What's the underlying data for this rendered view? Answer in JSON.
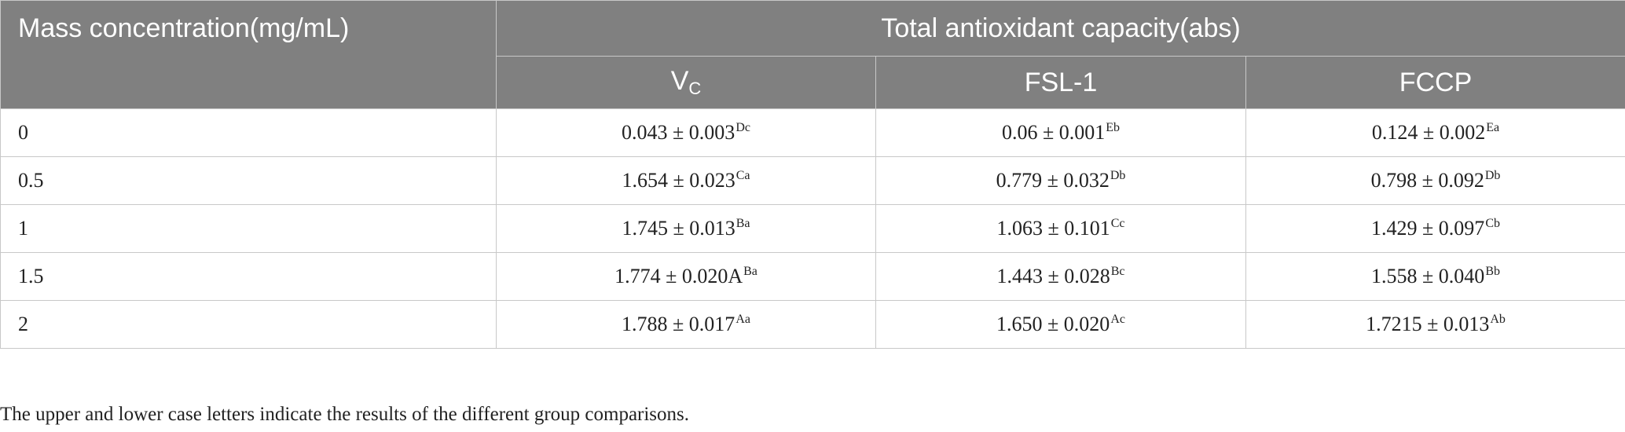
{
  "table": {
    "stub_header": "Mass concentration(mg/mL)",
    "group_header": "Total antioxidant capacity(abs)",
    "columns": [
      {
        "main": "V",
        "sub": "C"
      },
      {
        "main": "FSL-1",
        "sub": ""
      },
      {
        "main": "FCCP",
        "sub": ""
      }
    ],
    "rows": [
      {
        "label": "0",
        "cells": [
          {
            "value": "0.043 ± 0.003",
            "sup": "Dc"
          },
          {
            "value": "0.06 ± 0.001",
            "sup": "Eb"
          },
          {
            "value": "0.124 ± 0.002",
            "sup": "Ea"
          }
        ]
      },
      {
        "label": "0.5",
        "cells": [
          {
            "value": "1.654 ± 0.023",
            "sup": "Ca"
          },
          {
            "value": "0.779 ± 0.032",
            "sup": "Db"
          },
          {
            "value": "0.798 ± 0.092",
            "sup": "Db"
          }
        ]
      },
      {
        "label": "1",
        "cells": [
          {
            "value": "1.745 ± 0.013",
            "sup": "Ba"
          },
          {
            "value": "1.063 ± 0.101",
            "sup": "Cc"
          },
          {
            "value": "1.429 ± 0.097",
            "sup": "Cb"
          }
        ]
      },
      {
        "label": "1.5",
        "cells": [
          {
            "value": "1.774 ± 0.020A",
            "sup": "Ba"
          },
          {
            "value": "1.443 ± 0.028",
            "sup": "Bc"
          },
          {
            "value": "1.558 ± 0.040",
            "sup": "Bb"
          }
        ]
      },
      {
        "label": "2",
        "cells": [
          {
            "value": "1.788 ± 0.017",
            "sup": "Aa"
          },
          {
            "value": "1.650 ± 0.020",
            "sup": "Ac"
          },
          {
            "value": "1.7215 ± 0.013",
            "sup": "Ab"
          }
        ]
      }
    ]
  },
  "footnote": "The upper and lower case letters indicate the results of the different group comparisons.",
  "colors": {
    "header_bg": "#808080",
    "header_text": "#ffffff",
    "border": "#c8c8c8",
    "body_text": "#222222"
  }
}
